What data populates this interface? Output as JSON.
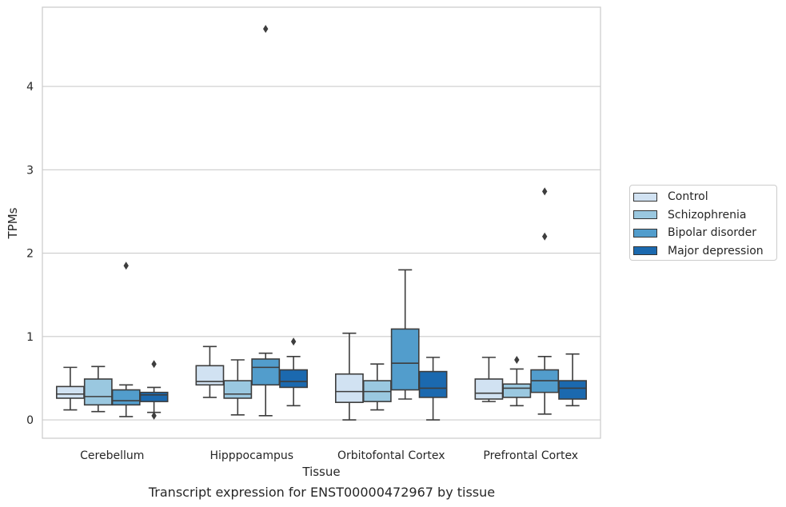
{
  "chart_data": {
    "type": "box",
    "xlabel": "Tissue",
    "ylabel": "TPMs",
    "ylim": [
      -0.22,
      4.95
    ],
    "yticks": [
      0,
      1,
      2,
      3,
      4
    ],
    "grid": "horizontal",
    "legend_position": "right",
    "categories": [
      "Cerebellum",
      "Hipppocampus",
      "Orbitofontal Cortex",
      "Prefrontal Cortex"
    ],
    "series": [
      {
        "name": "Control",
        "color": "#d1e2f2",
        "boxes": [
          {
            "whisker_low": 0.12,
            "q1": 0.26,
            "median": 0.31,
            "q3": 0.4,
            "whisker_high": 0.63,
            "outliers": []
          },
          {
            "whisker_low": 0.27,
            "q1": 0.42,
            "median": 0.46,
            "q3": 0.65,
            "whisker_high": 0.88,
            "outliers": []
          },
          {
            "whisker_low": 0.0,
            "q1": 0.21,
            "median": 0.34,
            "q3": 0.55,
            "whisker_high": 1.04,
            "outliers": []
          },
          {
            "whisker_low": 0.22,
            "q1": 0.25,
            "median": 0.32,
            "q3": 0.49,
            "whisker_high": 0.75,
            "outliers": []
          }
        ]
      },
      {
        "name": "Schizophrenia",
        "color": "#9ac8e0",
        "boxes": [
          {
            "whisker_low": 0.1,
            "q1": 0.18,
            "median": 0.28,
            "q3": 0.49,
            "whisker_high": 0.64,
            "outliers": []
          },
          {
            "whisker_low": 0.06,
            "q1": 0.26,
            "median": 0.31,
            "q3": 0.47,
            "whisker_high": 0.72,
            "outliers": []
          },
          {
            "whisker_low": 0.12,
            "q1": 0.22,
            "median": 0.34,
            "q3": 0.47,
            "whisker_high": 0.67,
            "outliers": []
          },
          {
            "whisker_low": 0.17,
            "q1": 0.27,
            "median": 0.38,
            "q3": 0.43,
            "whisker_high": 0.61,
            "outliers": [
              0.72
            ]
          }
        ]
      },
      {
        "name": "Bipolar disorder",
        "color": "#529dcc",
        "boxes": [
          {
            "whisker_low": 0.04,
            "q1": 0.18,
            "median": 0.23,
            "q3": 0.36,
            "whisker_high": 0.42,
            "outliers": [
              1.85
            ]
          },
          {
            "whisker_low": 0.05,
            "q1": 0.42,
            "median": 0.63,
            "q3": 0.73,
            "whisker_high": 0.8,
            "outliers": [
              4.69
            ]
          },
          {
            "whisker_low": 0.25,
            "q1": 0.36,
            "median": 0.68,
            "q3": 1.09,
            "whisker_high": 1.8,
            "outliers": []
          },
          {
            "whisker_low": 0.07,
            "q1": 0.33,
            "median": 0.47,
            "q3": 0.6,
            "whisker_high": 0.76,
            "outliers": [
              2.2,
              2.74
            ]
          }
        ]
      },
      {
        "name": "Major depression",
        "color": "#1b69af",
        "boxes": [
          {
            "whisker_low": 0.09,
            "q1": 0.22,
            "median": 0.3,
            "q3": 0.33,
            "whisker_high": 0.39,
            "outliers": [
              0.05,
              0.67
            ]
          },
          {
            "whisker_low": 0.17,
            "q1": 0.39,
            "median": 0.46,
            "q3": 0.6,
            "whisker_high": 0.76,
            "outliers": [
              0.94
            ]
          },
          {
            "whisker_low": 0.0,
            "q1": 0.27,
            "median": 0.38,
            "q3": 0.58,
            "whisker_high": 0.75,
            "outliers": []
          },
          {
            "whisker_low": 0.17,
            "q1": 0.25,
            "median": 0.38,
            "q3": 0.47,
            "whisker_high": 0.79,
            "outliers": []
          }
        ]
      }
    ],
    "caption": "Transcript expression for ENST00000472967 by tissue"
  }
}
